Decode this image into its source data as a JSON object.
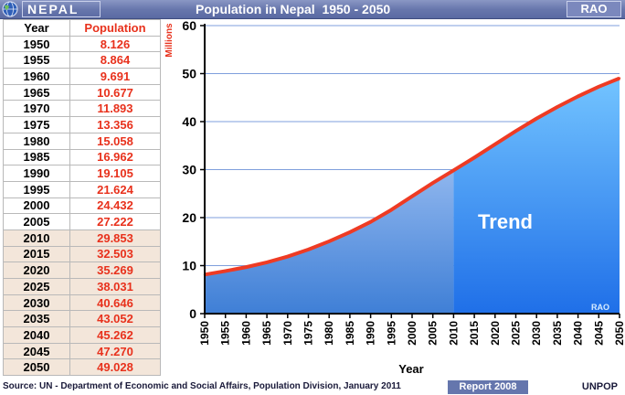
{
  "header": {
    "country": "NEPAL",
    "title": "Population in Nepal  1950 - 2050",
    "badge": "RAO"
  },
  "table": {
    "year_header": "Year",
    "pop_header": "Population"
  },
  "chart_data": {
    "type": "area",
    "title": "Population in Nepal  1950 - 2050",
    "xlabel": "Year",
    "ylabel": "Millions",
    "ylim": [
      0,
      60
    ],
    "yticks": [
      0,
      10,
      20,
      30,
      40,
      50,
      60
    ],
    "x": [
      1950,
      1955,
      1960,
      1965,
      1970,
      1975,
      1980,
      1985,
      1990,
      1995,
      2000,
      2005,
      2010,
      2015,
      2020,
      2025,
      2030,
      2035,
      2040,
      2045,
      2050
    ],
    "values": [
      "8.126",
      "8.864",
      "9.691",
      "10.677",
      "11.893",
      "13.356",
      "15.058",
      "16.962",
      "19.105",
      "21.624",
      "24.432",
      "27.222",
      "29.853",
      "32.503",
      "35.269",
      "38.031",
      "40.646",
      "43.052",
      "45.262",
      "47.270",
      "49.028"
    ],
    "projection_start": 2010,
    "annotation": "Trend",
    "watermark": "RAO",
    "colors": {
      "line": "#ee3b24",
      "historic_top": "#8fb6ee",
      "historic_bottom": "#3f7fd6",
      "projection_top": "#73c4ff",
      "projection_bottom": "#1f6fe8",
      "grid": "#7f9fdc"
    }
  },
  "footer": {
    "source": "Source: UN -  Department of Economic and Social Affairs, Population Division, January 2011",
    "report": "Report 2008",
    "org": "UNPOP"
  }
}
